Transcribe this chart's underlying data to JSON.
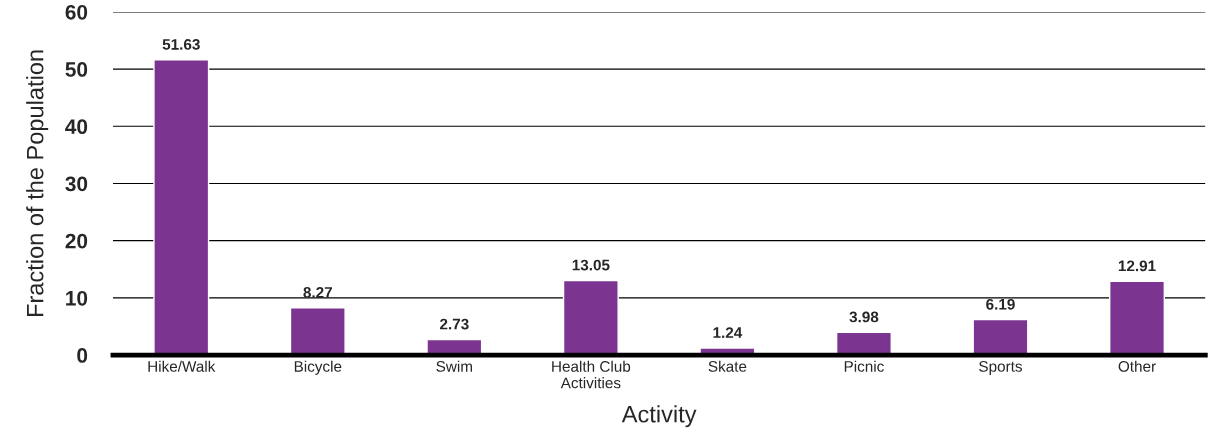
{
  "chart_data": {
    "type": "bar",
    "xlabel": "Activity",
    "ylabel": "Fraction of the Population",
    "categories": [
      "Hike/Walk",
      "Bicycle",
      "Swim",
      "Health Club Activities",
      "Skate",
      "Picnic",
      "Sports",
      "Other"
    ],
    "values": [
      51.63,
      8.27,
      2.73,
      13.05,
      1.24,
      3.98,
      6.19,
      12.91
    ],
    "color": "#7b3590",
    "ylim": [
      0,
      60
    ],
    "yticks": [
      0,
      10,
      20,
      30,
      40,
      50,
      60
    ],
    "grid": "y",
    "data_labels": true,
    "legend": false
  }
}
